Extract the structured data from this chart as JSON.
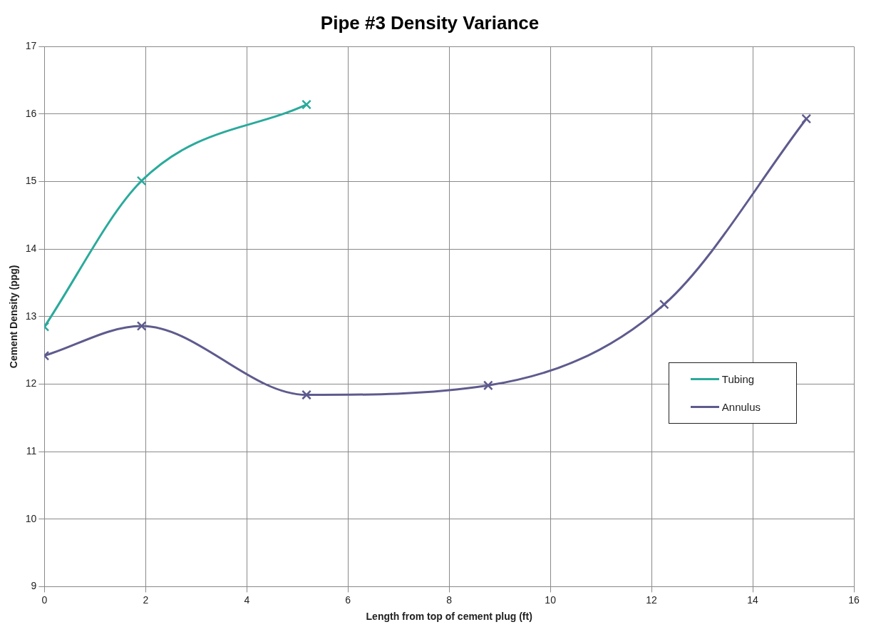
{
  "chart_data": {
    "type": "line",
    "title": "Pipe #3 Density Variance",
    "xlabel": "Length from top of cement plug (ft)",
    "ylabel": "Cement Density (ppg)",
    "series": [
      {
        "name": "Tubing",
        "color": "#2aaa9c",
        "x": [
          0,
          1.92,
          5.18
        ],
        "values": [
          12.85,
          15.01,
          16.14
        ]
      },
      {
        "name": "Annulus",
        "color": "#5e5b8e",
        "x": [
          0,
          1.92,
          5.18,
          8.77,
          12.25,
          15.06
        ],
        "values": [
          12.42,
          12.86,
          11.84,
          11.98,
          13.18,
          15.93
        ]
      }
    ],
    "xlim": [
      0,
      16
    ],
    "xticks": [
      0,
      2,
      4,
      6,
      8,
      10,
      12,
      14,
      16
    ],
    "ylim": [
      9,
      17
    ],
    "yticks": [
      9,
      10,
      11,
      12,
      13,
      14,
      15,
      16,
      17
    ],
    "grid": true,
    "legend": "right",
    "marker": "cross",
    "line_style": "solid"
  }
}
